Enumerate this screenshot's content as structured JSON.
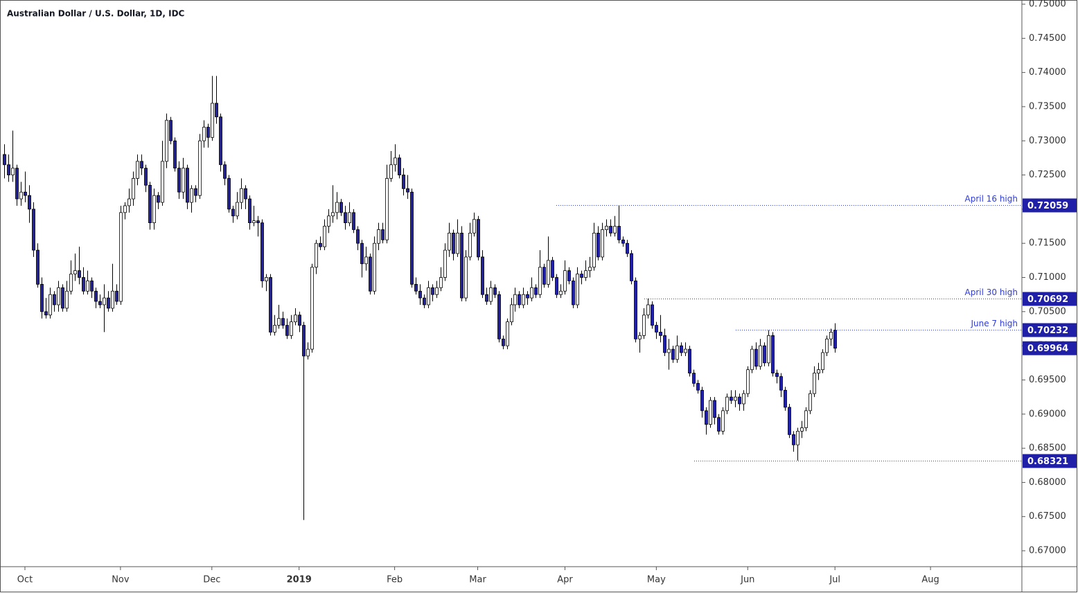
{
  "chart_data": {
    "type": "candlestick",
    "title": "Australian Dollar / U.S. Dollar, 1D, IDC",
    "up_color": "#ffffff",
    "down_color": "#1f1fa8",
    "line_color": "#2f3bd6",
    "xlim": [
      -1,
      245
    ],
    "xticks": [
      {
        "value": 5,
        "label": "Oct"
      },
      {
        "value": 28,
        "label": "Nov"
      },
      {
        "value": 50,
        "label": "Dec"
      },
      {
        "value": 71,
        "label": "2019",
        "bold": true
      },
      {
        "value": 94,
        "label": "Feb"
      },
      {
        "value": 114,
        "label": "Mar"
      },
      {
        "value": 135,
        "label": "Apr"
      },
      {
        "value": 157,
        "label": "May"
      },
      {
        "value": 179,
        "label": "Jun"
      },
      {
        "value": 200,
        "label": "Jul"
      },
      {
        "value": 223,
        "label": "Aug"
      }
    ],
    "ylim": [
      0.66767,
      0.75061
    ],
    "yticks": [
      {
        "value": 0.67,
        "label": "0.67000"
      },
      {
        "value": 0.675,
        "label": "0.67500"
      },
      {
        "value": 0.68,
        "label": "0.68000"
      },
      {
        "value": 0.685,
        "label": "0.68500"
      },
      {
        "value": 0.69,
        "label": "0.69000"
      },
      {
        "value": 0.695,
        "label": "0.69500"
      },
      {
        "value": 0.7,
        "label": "0.70000"
      },
      {
        "value": 0.705,
        "label": "0.70500"
      },
      {
        "value": 0.71,
        "label": "0.71000"
      },
      {
        "value": 0.715,
        "label": "0.71500"
      },
      {
        "value": 0.72,
        "label": "0.72000"
      },
      {
        "value": 0.725,
        "label": "0.72500"
      },
      {
        "value": 0.73,
        "label": "0.73000"
      },
      {
        "value": 0.735,
        "label": "0.73500"
      },
      {
        "value": 0.74,
        "label": "0.74000"
      },
      {
        "value": 0.745,
        "label": "0.74500"
      },
      {
        "value": 0.75,
        "label": "0.75000"
      }
    ],
    "levels": [
      {
        "name": "April 16 high",
        "value": 0.72059
      },
      {
        "name": "April 30 high",
        "value": 0.70692
      },
      {
        "name": "June 7 high",
        "value": 0.70232
      },
      {
        "value": 0.68321
      }
    ],
    "candles": [
      [
        0.728,
        0.7295,
        0.7245,
        0.7265
      ],
      [
        0.7265,
        0.728,
        0.724,
        0.725
      ],
      [
        0.725,
        0.7315,
        0.724,
        0.726
      ],
      [
        0.726,
        0.7265,
        0.7205,
        0.7215
      ],
      [
        0.7215,
        0.724,
        0.7205,
        0.7225
      ],
      [
        0.7225,
        0.7255,
        0.721,
        0.722
      ],
      [
        0.722,
        0.7235,
        0.718,
        0.72
      ],
      [
        0.72,
        0.721,
        0.713,
        0.714
      ],
      [
        0.714,
        0.715,
        0.7085,
        0.709
      ],
      [
        0.709,
        0.71,
        0.704,
        0.705
      ],
      [
        0.705,
        0.707,
        0.704,
        0.7045
      ],
      [
        0.7045,
        0.7085,
        0.704,
        0.7075
      ],
      [
        0.7075,
        0.708,
        0.705,
        0.706
      ],
      [
        0.706,
        0.7095,
        0.705,
        0.7085
      ],
      [
        0.7085,
        0.709,
        0.705,
        0.7055
      ],
      [
        0.7055,
        0.7095,
        0.705,
        0.708
      ],
      [
        0.708,
        0.7125,
        0.7075,
        0.7105
      ],
      [
        0.7105,
        0.7135,
        0.7095,
        0.711
      ],
      [
        0.711,
        0.7145,
        0.709,
        0.71
      ],
      [
        0.71,
        0.7115,
        0.7075,
        0.708
      ],
      [
        0.708,
        0.711,
        0.7075,
        0.7095
      ],
      [
        0.7095,
        0.71,
        0.707,
        0.708
      ],
      [
        0.708,
        0.7085,
        0.7055,
        0.7065
      ],
      [
        0.7065,
        0.7075,
        0.7055,
        0.706
      ],
      [
        0.706,
        0.709,
        0.702,
        0.707
      ],
      [
        0.707,
        0.708,
        0.705,
        0.7055
      ],
      [
        0.7055,
        0.712,
        0.705,
        0.708
      ],
      [
        0.708,
        0.709,
        0.706,
        0.7065
      ],
      [
        0.7065,
        0.7205,
        0.706,
        0.7195
      ],
      [
        0.7195,
        0.721,
        0.7185,
        0.7205
      ],
      [
        0.7205,
        0.723,
        0.7195,
        0.7215
      ],
      [
        0.7215,
        0.7255,
        0.7205,
        0.7245
      ],
      [
        0.7245,
        0.728,
        0.7235,
        0.727
      ],
      [
        0.727,
        0.728,
        0.725,
        0.726
      ],
      [
        0.726,
        0.7265,
        0.7225,
        0.7235
      ],
      [
        0.7235,
        0.724,
        0.717,
        0.718
      ],
      [
        0.718,
        0.723,
        0.717,
        0.722
      ],
      [
        0.722,
        0.7225,
        0.72,
        0.721
      ],
      [
        0.721,
        0.73,
        0.7205,
        0.727
      ],
      [
        0.727,
        0.734,
        0.726,
        0.733
      ],
      [
        0.733,
        0.7335,
        0.7295,
        0.73
      ],
      [
        0.73,
        0.7305,
        0.7255,
        0.726
      ],
      [
        0.726,
        0.727,
        0.7215,
        0.7225
      ],
      [
        0.7225,
        0.7275,
        0.7215,
        0.726
      ],
      [
        0.726,
        0.7265,
        0.72,
        0.721
      ],
      [
        0.721,
        0.7235,
        0.7195,
        0.723
      ],
      [
        0.723,
        0.7235,
        0.721,
        0.722
      ],
      [
        0.722,
        0.731,
        0.7215,
        0.73
      ],
      [
        0.73,
        0.733,
        0.729,
        0.732
      ],
      [
        0.732,
        0.7325,
        0.729,
        0.7305
      ],
      [
        0.7305,
        0.7395,
        0.73,
        0.7355
      ],
      [
        0.7355,
        0.7395,
        0.7325,
        0.7335
      ],
      [
        0.7335,
        0.734,
        0.7255,
        0.7265
      ],
      [
        0.7265,
        0.727,
        0.7235,
        0.7245
      ],
      [
        0.7245,
        0.725,
        0.7195,
        0.72
      ],
      [
        0.72,
        0.7205,
        0.718,
        0.719
      ],
      [
        0.719,
        0.7225,
        0.7185,
        0.721
      ],
      [
        0.721,
        0.7245,
        0.72,
        0.723
      ],
      [
        0.723,
        0.7235,
        0.72,
        0.7215
      ],
      [
        0.7215,
        0.722,
        0.717,
        0.718
      ],
      [
        0.718,
        0.7205,
        0.7175,
        0.7183
      ],
      [
        0.7183,
        0.719,
        0.716,
        0.718
      ],
      [
        0.718,
        0.7185,
        0.7085,
        0.7095
      ],
      [
        0.7095,
        0.7105,
        0.708,
        0.71
      ],
      [
        0.71,
        0.7105,
        0.7015,
        0.702
      ],
      [
        0.702,
        0.7045,
        0.7015,
        0.703
      ],
      [
        0.703,
        0.706,
        0.7025,
        0.704
      ],
      [
        0.704,
        0.705,
        0.7025,
        0.703
      ],
      [
        0.703,
        0.704,
        0.701,
        0.7015
      ],
      [
        0.7015,
        0.7045,
        0.701,
        0.7035
      ],
      [
        0.7035,
        0.7055,
        0.703,
        0.7045
      ],
      [
        0.7045,
        0.705,
        0.702,
        0.703
      ],
      [
        0.703,
        0.7035,
        0.6745,
        0.6985
      ],
      [
        0.6985,
        0.7005,
        0.698,
        0.6995
      ],
      [
        0.6995,
        0.712,
        0.699,
        0.7115
      ],
      [
        0.7115,
        0.7155,
        0.7105,
        0.715
      ],
      [
        0.715,
        0.716,
        0.714,
        0.7145
      ],
      [
        0.7145,
        0.7185,
        0.714,
        0.7175
      ],
      [
        0.7175,
        0.72,
        0.7165,
        0.719
      ],
      [
        0.719,
        0.7235,
        0.718,
        0.7195
      ],
      [
        0.7195,
        0.7225,
        0.7185,
        0.721
      ],
      [
        0.721,
        0.7215,
        0.719,
        0.7195
      ],
      [
        0.7195,
        0.7205,
        0.717,
        0.718
      ],
      [
        0.718,
        0.721,
        0.7175,
        0.7195
      ],
      [
        0.7195,
        0.72,
        0.7165,
        0.717
      ],
      [
        0.717,
        0.7175,
        0.714,
        0.715
      ],
      [
        0.715,
        0.7155,
        0.71,
        0.712
      ],
      [
        0.712,
        0.7145,
        0.711,
        0.713
      ],
      [
        0.713,
        0.7135,
        0.7075,
        0.708
      ],
      [
        0.708,
        0.716,
        0.7075,
        0.715
      ],
      [
        0.715,
        0.718,
        0.714,
        0.717
      ],
      [
        0.717,
        0.718,
        0.715,
        0.7155
      ],
      [
        0.7155,
        0.7265,
        0.715,
        0.7245
      ],
      [
        0.7245,
        0.7285,
        0.724,
        0.7265
      ],
      [
        0.7265,
        0.7295,
        0.7255,
        0.7275
      ],
      [
        0.7275,
        0.728,
        0.7245,
        0.725
      ],
      [
        0.725,
        0.726,
        0.722,
        0.723
      ],
      [
        0.723,
        0.725,
        0.7215,
        0.7225
      ],
      [
        0.7225,
        0.723,
        0.7085,
        0.709
      ],
      [
        0.709,
        0.71,
        0.7075,
        0.708
      ],
      [
        0.708,
        0.709,
        0.706,
        0.707
      ],
      [
        0.707,
        0.7075,
        0.7055,
        0.706
      ],
      [
        0.706,
        0.7095,
        0.7055,
        0.7085
      ],
      [
        0.7085,
        0.709,
        0.7065,
        0.7075
      ],
      [
        0.7075,
        0.7095,
        0.707,
        0.7085
      ],
      [
        0.7085,
        0.7115,
        0.708,
        0.71
      ],
      [
        0.71,
        0.715,
        0.7095,
        0.714
      ],
      [
        0.714,
        0.718,
        0.713,
        0.7165
      ],
      [
        0.7165,
        0.717,
        0.7125,
        0.7135
      ],
      [
        0.7135,
        0.7185,
        0.713,
        0.7165
      ],
      [
        0.7165,
        0.7175,
        0.7065,
        0.707
      ],
      [
        0.707,
        0.714,
        0.7065,
        0.713
      ],
      [
        0.713,
        0.718,
        0.7125,
        0.7165
      ],
      [
        0.7165,
        0.7195,
        0.716,
        0.7185
      ],
      [
        0.7185,
        0.719,
        0.7125,
        0.713
      ],
      [
        0.713,
        0.714,
        0.707,
        0.7075
      ],
      [
        0.7075,
        0.7085,
        0.706,
        0.7065
      ],
      [
        0.7065,
        0.7095,
        0.706,
        0.7085
      ],
      [
        0.7085,
        0.709,
        0.707,
        0.7075
      ],
      [
        0.7075,
        0.708,
        0.7005,
        0.701
      ],
      [
        0.701,
        0.7015,
        0.6995,
        0.7
      ],
      [
        0.7,
        0.704,
        0.6995,
        0.7035
      ],
      [
        0.7035,
        0.707,
        0.703,
        0.706
      ],
      [
        0.706,
        0.7085,
        0.705,
        0.7075
      ],
      [
        0.7075,
        0.708,
        0.7055,
        0.706
      ],
      [
        0.706,
        0.7085,
        0.7055,
        0.7075
      ],
      [
        0.7075,
        0.708,
        0.706,
        0.707
      ],
      [
        0.707,
        0.71,
        0.7065,
        0.7085
      ],
      [
        0.7085,
        0.709,
        0.707,
        0.7075
      ],
      [
        0.7075,
        0.714,
        0.707,
        0.7115
      ],
      [
        0.7115,
        0.712,
        0.7085,
        0.709
      ],
      [
        0.709,
        0.716,
        0.7085,
        0.7125
      ],
      [
        0.7125,
        0.713,
        0.7095,
        0.71
      ],
      [
        0.71,
        0.7105,
        0.707,
        0.7075
      ],
      [
        0.7075,
        0.709,
        0.707,
        0.708
      ],
      [
        0.708,
        0.7125,
        0.7075,
        0.711
      ],
      [
        0.711,
        0.7115,
        0.709,
        0.7095
      ],
      [
        0.7095,
        0.71,
        0.7055,
        0.706
      ],
      [
        0.706,
        0.7115,
        0.7055,
        0.7105
      ],
      [
        0.7105,
        0.711,
        0.709,
        0.71
      ],
      [
        0.71,
        0.7125,
        0.7095,
        0.711
      ],
      [
        0.711,
        0.713,
        0.71,
        0.7115
      ],
      [
        0.7115,
        0.718,
        0.711,
        0.7165
      ],
      [
        0.7165,
        0.7175,
        0.7125,
        0.713
      ],
      [
        0.713,
        0.718,
        0.7125,
        0.717
      ],
      [
        0.717,
        0.7185,
        0.716,
        0.7175
      ],
      [
        0.7175,
        0.7185,
        0.716,
        0.7165
      ],
      [
        0.7165,
        0.719,
        0.716,
        0.7175
      ],
      [
        0.7175,
        0.7206,
        0.715,
        0.7155
      ],
      [
        0.7155,
        0.716,
        0.7145,
        0.715
      ],
      [
        0.715,
        0.7155,
        0.713,
        0.7135
      ],
      [
        0.7135,
        0.714,
        0.709,
        0.7095
      ],
      [
        0.7095,
        0.71,
        0.7005,
        0.701
      ],
      [
        0.701,
        0.702,
        0.699,
        0.7015
      ],
      [
        0.7015,
        0.7055,
        0.701,
        0.7045
      ],
      [
        0.7045,
        0.7069,
        0.704,
        0.706
      ],
      [
        0.706,
        0.7065,
        0.7025,
        0.703
      ],
      [
        0.703,
        0.7035,
        0.701,
        0.702
      ],
      [
        0.702,
        0.7045,
        0.7005,
        0.7015
      ],
      [
        0.7015,
        0.7025,
        0.6985,
        0.699
      ],
      [
        0.699,
        0.701,
        0.6965,
        0.6995
      ],
      [
        0.6995,
        0.7,
        0.6975,
        0.698
      ],
      [
        0.698,
        0.7015,
        0.6975,
        0.7
      ],
      [
        0.7,
        0.7005,
        0.6985,
        0.699
      ],
      [
        0.699,
        0.7005,
        0.6985,
        0.6995
      ],
      [
        0.6995,
        0.7,
        0.6955,
        0.696
      ],
      [
        0.696,
        0.6965,
        0.694,
        0.6945
      ],
      [
        0.6945,
        0.695,
        0.693,
        0.6935
      ],
      [
        0.6935,
        0.694,
        0.6895,
        0.6905
      ],
      [
        0.6905,
        0.691,
        0.687,
        0.6885
      ],
      [
        0.6885,
        0.6925,
        0.688,
        0.692
      ],
      [
        0.692,
        0.6925,
        0.6885,
        0.6895
      ],
      [
        0.6895,
        0.69,
        0.687,
        0.6875
      ],
      [
        0.6875,
        0.691,
        0.687,
        0.6905
      ],
      [
        0.6905,
        0.693,
        0.69,
        0.6925
      ],
      [
        0.6925,
        0.6935,
        0.6915,
        0.692
      ],
      [
        0.692,
        0.6935,
        0.691,
        0.6925
      ],
      [
        0.6925,
        0.693,
        0.6905,
        0.6915
      ],
      [
        0.6915,
        0.6935,
        0.6905,
        0.693
      ],
      [
        0.693,
        0.697,
        0.6925,
        0.6965
      ],
      [
        0.6965,
        0.7,
        0.696,
        0.6995
      ],
      [
        0.6995,
        0.7005,
        0.6965,
        0.697
      ],
      [
        0.697,
        0.701,
        0.6965,
        0.7
      ],
      [
        0.7,
        0.7005,
        0.697,
        0.6975
      ],
      [
        0.6975,
        0.7023,
        0.697,
        0.7015
      ],
      [
        0.7015,
        0.702,
        0.6955,
        0.696
      ],
      [
        0.696,
        0.6965,
        0.6945,
        0.6955
      ],
      [
        0.6955,
        0.696,
        0.6925,
        0.6935
      ],
      [
        0.6935,
        0.694,
        0.6905,
        0.691
      ],
      [
        0.691,
        0.6915,
        0.6865,
        0.687
      ],
      [
        0.687,
        0.6875,
        0.6845,
        0.6855
      ],
      [
        0.6855,
        0.688,
        0.6832,
        0.6875
      ],
      [
        0.6875,
        0.689,
        0.6865,
        0.688
      ],
      [
        0.688,
        0.691,
        0.6875,
        0.6905
      ],
      [
        0.6905,
        0.6935,
        0.69,
        0.693
      ],
      [
        0.693,
        0.697,
        0.6925,
        0.696
      ],
      [
        0.696,
        0.6975,
        0.695,
        0.6965
      ],
      [
        0.6965,
        0.6995,
        0.696,
        0.699
      ],
      [
        0.699,
        0.7015,
        0.6985,
        0.701
      ],
      [
        0.701,
        0.7025,
        0.7,
        0.702
      ],
      [
        0.7023,
        0.7033,
        0.699,
        0.69964
      ]
    ]
  }
}
